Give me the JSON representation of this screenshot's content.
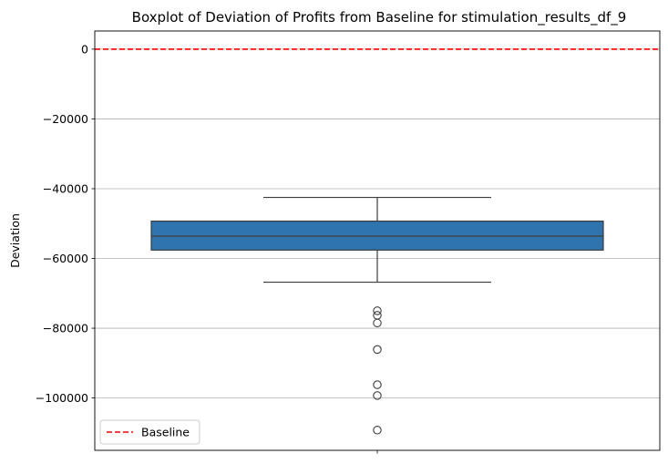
{
  "chart_data": {
    "type": "box",
    "title": "Boxplot of Deviation of Profits from Baseline for stimulation_results_df_9",
    "xlabel": "",
    "ylabel": "Deviation",
    "ylim": [
      -115000,
      5200
    ],
    "yticks": [
      0,
      -20000,
      -40000,
      -60000,
      -80000,
      -100000
    ],
    "ytick_labels": [
      "0",
      "−20000",
      "−40000",
      "−60000",
      "−80000",
      "−100000"
    ],
    "grid": "y",
    "box": {
      "whisker_high": -42500,
      "q3": -49300,
      "median": -53600,
      "q1": -57600,
      "whisker_low": -66800,
      "color": "#2f74ad",
      "line_color": "#3d3d3d"
    },
    "outliers": [
      -75000,
      -76300,
      -78500,
      -86100,
      -96200,
      -99300,
      -109200
    ],
    "baseline": {
      "value": 0,
      "label": "Baseline",
      "color": "#ff0000",
      "style": "dashed"
    },
    "legend": {
      "position": "lower-left",
      "entries": [
        "Baseline"
      ]
    }
  }
}
